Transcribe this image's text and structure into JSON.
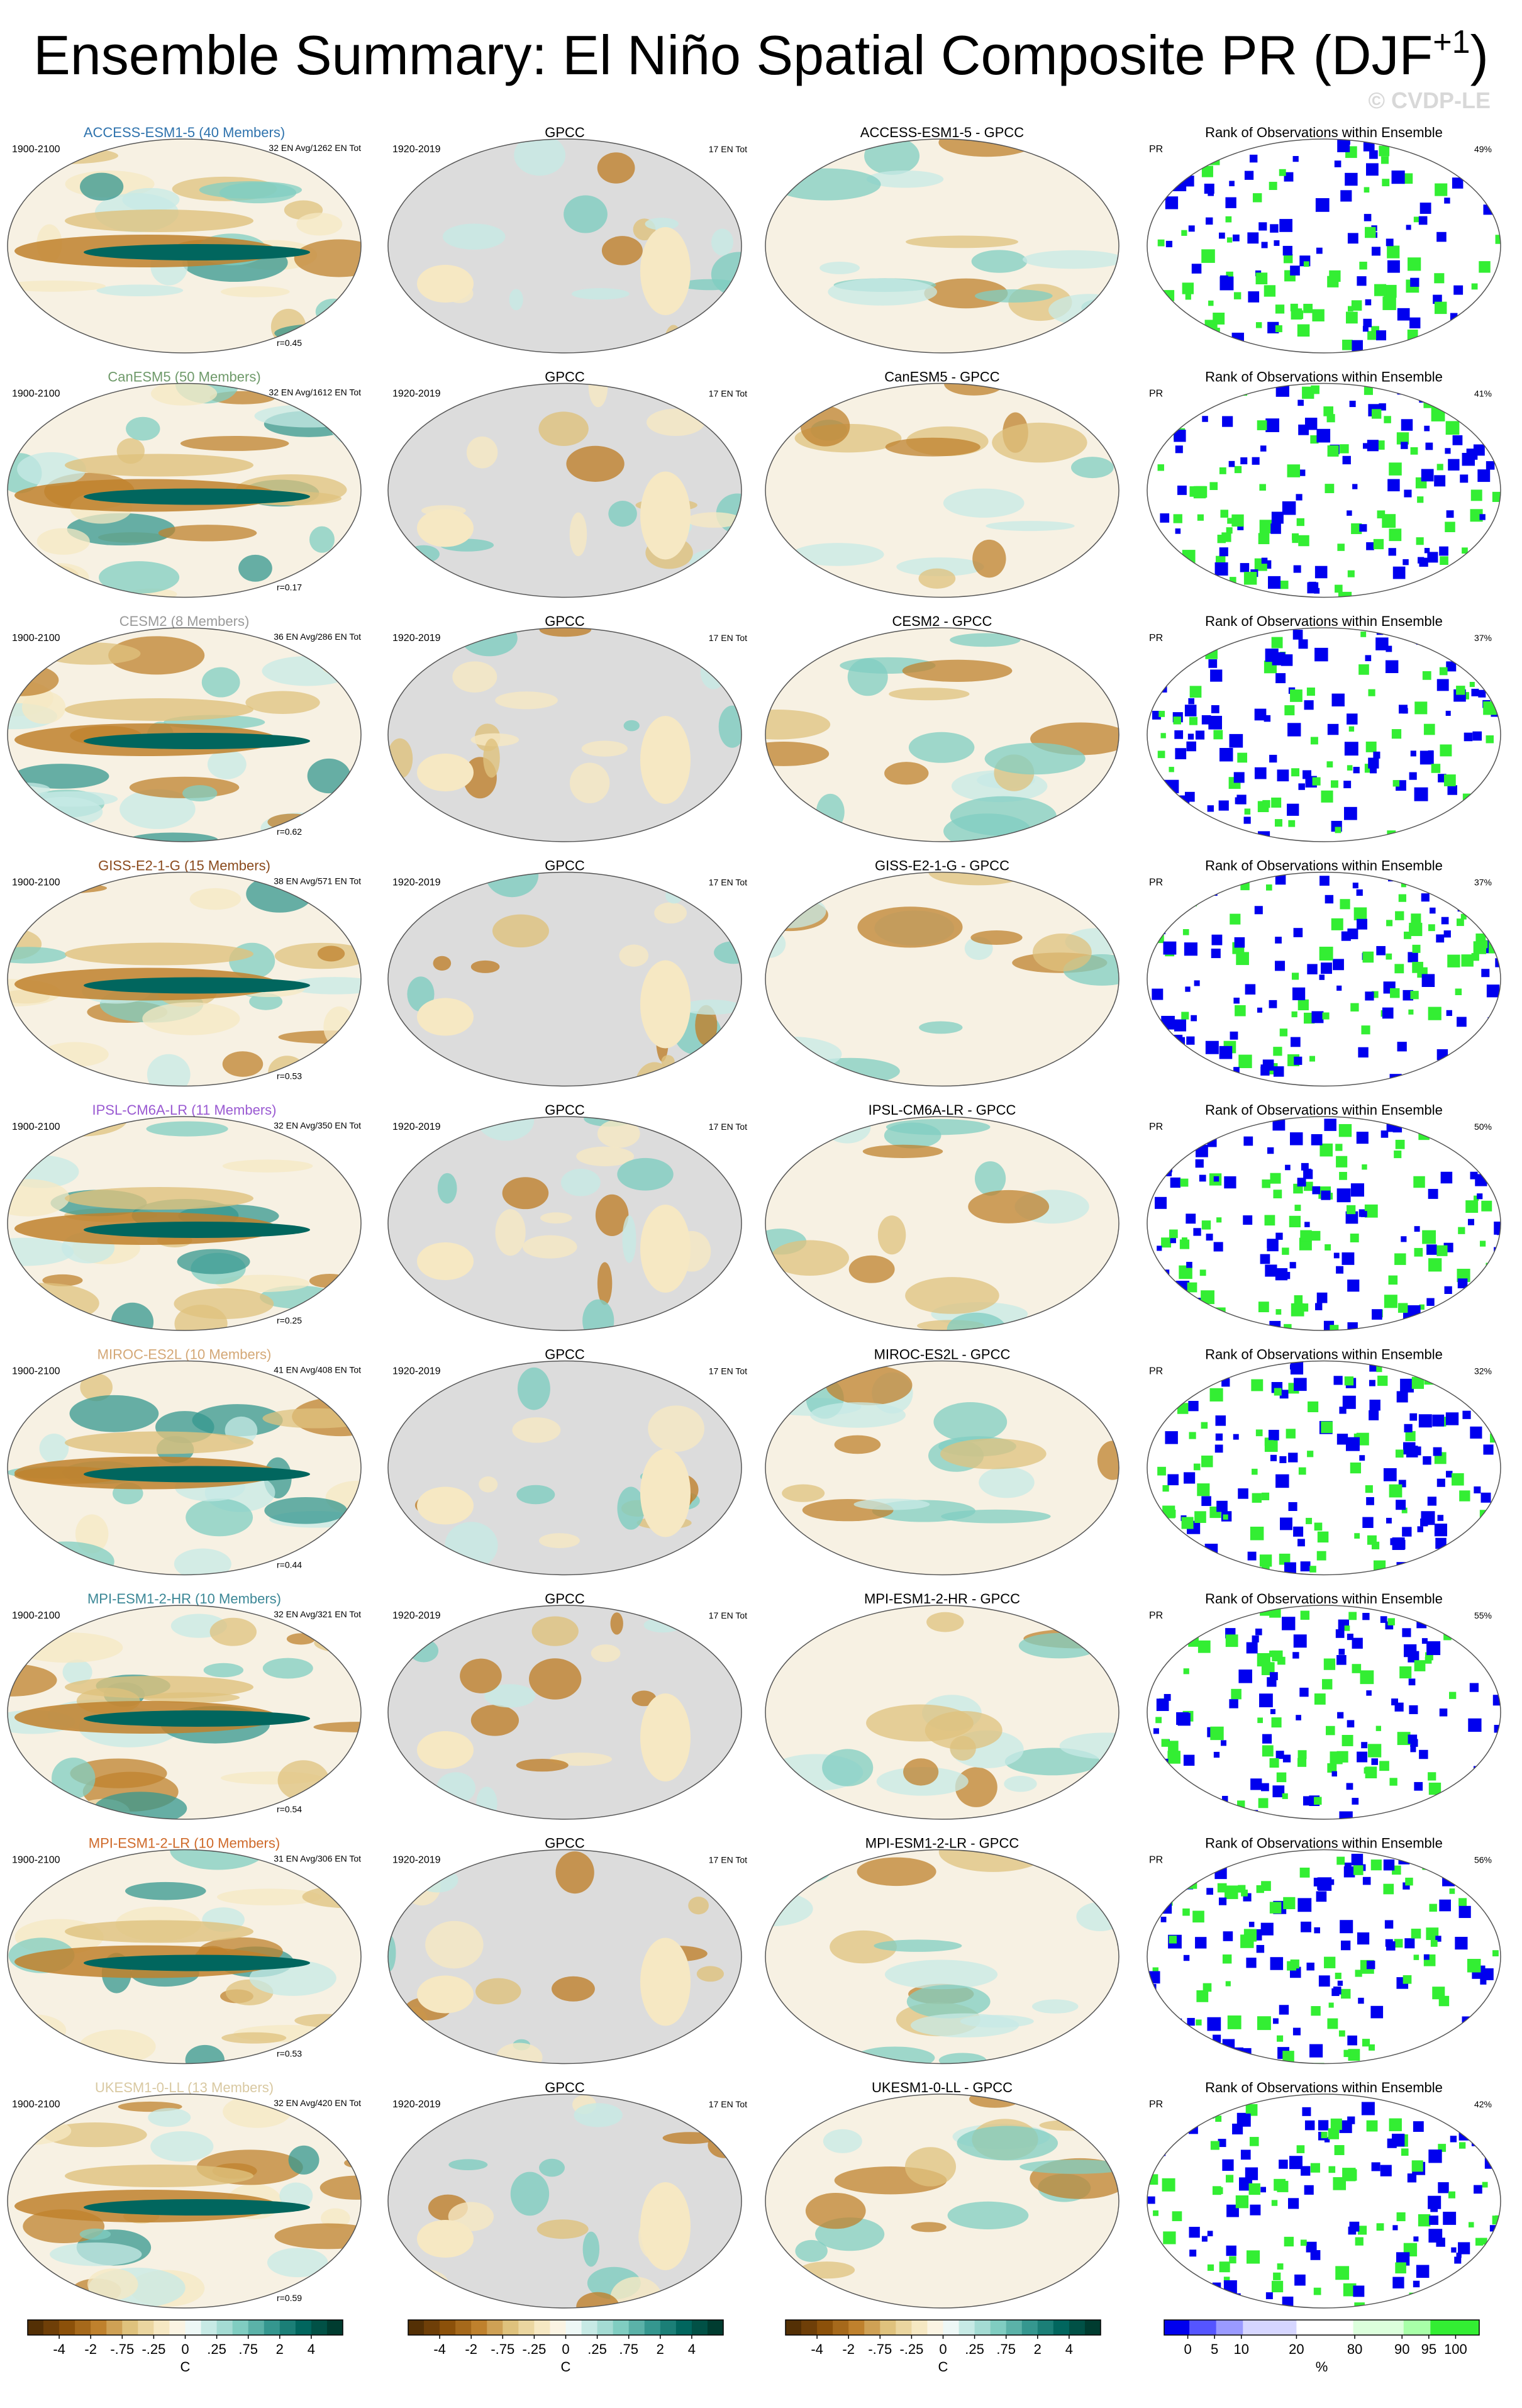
{
  "header": {
    "title": "Ensemble Summary: El Niño Spatial Composite PR (DJF",
    "title_superscript": "+1",
    "title_end": ")",
    "watermark": "© CVDP-LE"
  },
  "rows": [
    {
      "model_title": "ACCESS-ESM1-5 (40 Members)",
      "model_color": "#2f73ad",
      "model_period": "1900-2100",
      "model_stats": "32 EN Avg/1262 EN Tot",
      "model_r": "r=0.45",
      "obs_title": "GPCC",
      "obs_period": "1920-2019",
      "obs_stats": "17 EN Tot",
      "diff_title": "ACCESS-ESM1-5 - GPCC",
      "rank_title": "Rank of Observations within Ensemble",
      "rank_var": "PR",
      "rank_pct": "49%"
    },
    {
      "model_title": "CanESM5 (50 Members)",
      "model_color": "#6f9a6a",
      "model_period": "1900-2100",
      "model_stats": "32 EN Avg/1612 EN Tot",
      "model_r": "r=0.17",
      "obs_title": "GPCC",
      "obs_period": "1920-2019",
      "obs_stats": "17 EN Tot",
      "diff_title": "CanESM5 - GPCC",
      "rank_title": "Rank of Observations within Ensemble",
      "rank_var": "PR",
      "rank_pct": "41%"
    },
    {
      "model_title": "CESM2 (8 Members)",
      "model_color": "#9a9a9a",
      "model_period": "1900-2100",
      "model_stats": "36 EN Avg/286 EN Tot",
      "model_r": "r=0.62",
      "obs_title": "GPCC",
      "obs_period": "1920-2019",
      "obs_stats": "17 EN Tot",
      "diff_title": "CESM2 - GPCC",
      "rank_title": "Rank of Observations within Ensemble",
      "rank_var": "PR",
      "rank_pct": "37%"
    },
    {
      "model_title": "GISS-E2-1-G (15 Members)",
      "model_color": "#8a4a1c",
      "model_period": "1900-2100",
      "model_stats": "38 EN Avg/571 EN Tot",
      "model_r": "r=0.53",
      "obs_title": "GPCC",
      "obs_period": "1920-2019",
      "obs_stats": "17 EN Tot",
      "diff_title": "GISS-E2-1-G - GPCC",
      "rank_title": "Rank of Observations within Ensemble",
      "rank_var": "PR",
      "rank_pct": "37%"
    },
    {
      "model_title": "IPSL-CM6A-LR (11 Members)",
      "model_color": "#9a5ad2",
      "model_period": "1900-2100",
      "model_stats": "32 EN Avg/350 EN Tot",
      "model_r": "r=0.25",
      "obs_title": "GPCC",
      "obs_period": "1920-2019",
      "obs_stats": "17 EN Tot",
      "diff_title": "IPSL-CM6A-LR - GPCC",
      "rank_title": "Rank of Observations within Ensemble",
      "rank_var": "PR",
      "rank_pct": "50%"
    },
    {
      "model_title": "MIROC-ES2L (10 Members)",
      "model_color": "#d4a877",
      "model_period": "1900-2100",
      "model_stats": "41 EN Avg/408 EN Tot",
      "model_r": "r=0.44",
      "obs_title": "GPCC",
      "obs_period": "1920-2019",
      "obs_stats": "17 EN Tot",
      "diff_title": "MIROC-ES2L - GPCC",
      "rank_title": "Rank of Observations within Ensemble",
      "rank_var": "PR",
      "rank_pct": "32%"
    },
    {
      "model_title": "MPI-ESM1-2-HR (10 Members)",
      "model_color": "#3b8796",
      "model_period": "1900-2100",
      "model_stats": "32 EN Avg/321 EN Tot",
      "model_r": "r=0.54",
      "obs_title": "GPCC",
      "obs_period": "1920-2019",
      "obs_stats": "17 EN Tot",
      "diff_title": "MPI-ESM1-2-HR - GPCC",
      "rank_title": "Rank of Observations within Ensemble",
      "rank_var": "PR",
      "rank_pct": "55%"
    },
    {
      "model_title": "MPI-ESM1-2-LR (10 Members)",
      "model_color": "#cf6a2a",
      "model_period": "1900-2100",
      "model_stats": "31 EN Avg/306 EN Tot",
      "model_r": "r=0.53",
      "obs_title": "GPCC",
      "obs_period": "1920-2019",
      "obs_stats": "17 EN Tot",
      "diff_title": "MPI-ESM1-2-LR - GPCC",
      "rank_title": "Rank of Observations within Ensemble",
      "rank_var": "PR",
      "rank_pct": "56%"
    },
    {
      "model_title": "UKESM1-0-LL (13 Members)",
      "model_color": "#d9c9a2",
      "model_period": "1900-2100",
      "model_stats": "32 EN Avg/420 EN Tot",
      "model_r": "r=0.59",
      "obs_title": "GPCC",
      "obs_period": "1920-2019",
      "obs_stats": "17 EN Tot",
      "diff_title": "UKESM1-0-LL - GPCC",
      "rank_title": "Rank of Observations within Ensemble",
      "rank_var": "PR",
      "rank_pct": "42%"
    }
  ],
  "colorbars": [
    {
      "unit": "C",
      "ticks": [
        -4,
        -2,
        {
          "value": -0.75,
          "label": "-.75"
        },
        {
          "value": -0.25,
          "label": "-.25"
        },
        0,
        {
          "value": 0.25,
          "label": ".25"
        },
        {
          "value": 0.75,
          "label": ".75"
        },
        2,
        4
      ]
    },
    {
      "unit": "C",
      "ticks": [
        -4,
        -2,
        {
          "value": -0.75,
          "label": "-.75"
        },
        {
          "value": -0.25,
          "label": "-.25"
        },
        0,
        {
          "value": 0.25,
          "label": ".25"
        },
        {
          "value": 0.75,
          "label": ".75"
        },
        2,
        4
      ]
    },
    {
      "unit": "C",
      "ticks": [
        -4,
        -2,
        {
          "value": -0.75,
          "label": "-.75"
        },
        {
          "value": -0.25,
          "label": "-.25"
        },
        0,
        {
          "value": 0.25,
          "label": ".25"
        },
        {
          "value": 0.75,
          "label": ".75"
        },
        2,
        4
      ]
    },
    {
      "unit": "%",
      "ticks": [
        0,
        5,
        10,
        20,
        80,
        90,
        95,
        100
      ]
    }
  ]
}
